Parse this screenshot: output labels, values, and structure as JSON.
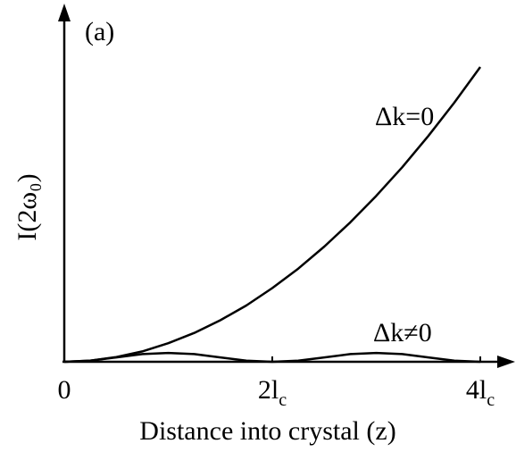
{
  "chart_data": {
    "type": "line",
    "panel_label": "(a)",
    "x_label": "Distance into crystal (z)",
    "y_label": "I(2ω₀)",
    "x": [
      0,
      0.25,
      0.5,
      0.75,
      1,
      1.25,
      1.5,
      1.75,
      2,
      2.25,
      2.5,
      2.75,
      3,
      3.25,
      3.5,
      3.75,
      4
    ],
    "series": [
      {
        "name": "Δk=0",
        "color": "#000000",
        "values": [
          0,
          0.004,
          0.016,
          0.035,
          0.063,
          0.098,
          0.141,
          0.191,
          0.25,
          0.316,
          0.391,
          0.473,
          0.563,
          0.66,
          0.766,
          0.879,
          1
        ]
      },
      {
        "name": "Δk≠0",
        "color": "#000000",
        "values": [
          0,
          0.004,
          0.015,
          0.026,
          0.03,
          0.026,
          0.015,
          0.004,
          0,
          0.004,
          0.015,
          0.026,
          0.03,
          0.026,
          0.015,
          0.004,
          0
        ]
      }
    ],
    "xlim": [
      0,
      4
    ],
    "ylim": [
      0,
      1.2
    ],
    "xticks": [
      0,
      {
        "value": 2,
        "label": "2l",
        "subscript": "c"
      },
      {
        "value": 4,
        "label": "4l",
        "subscript": "c"
      }
    ]
  }
}
